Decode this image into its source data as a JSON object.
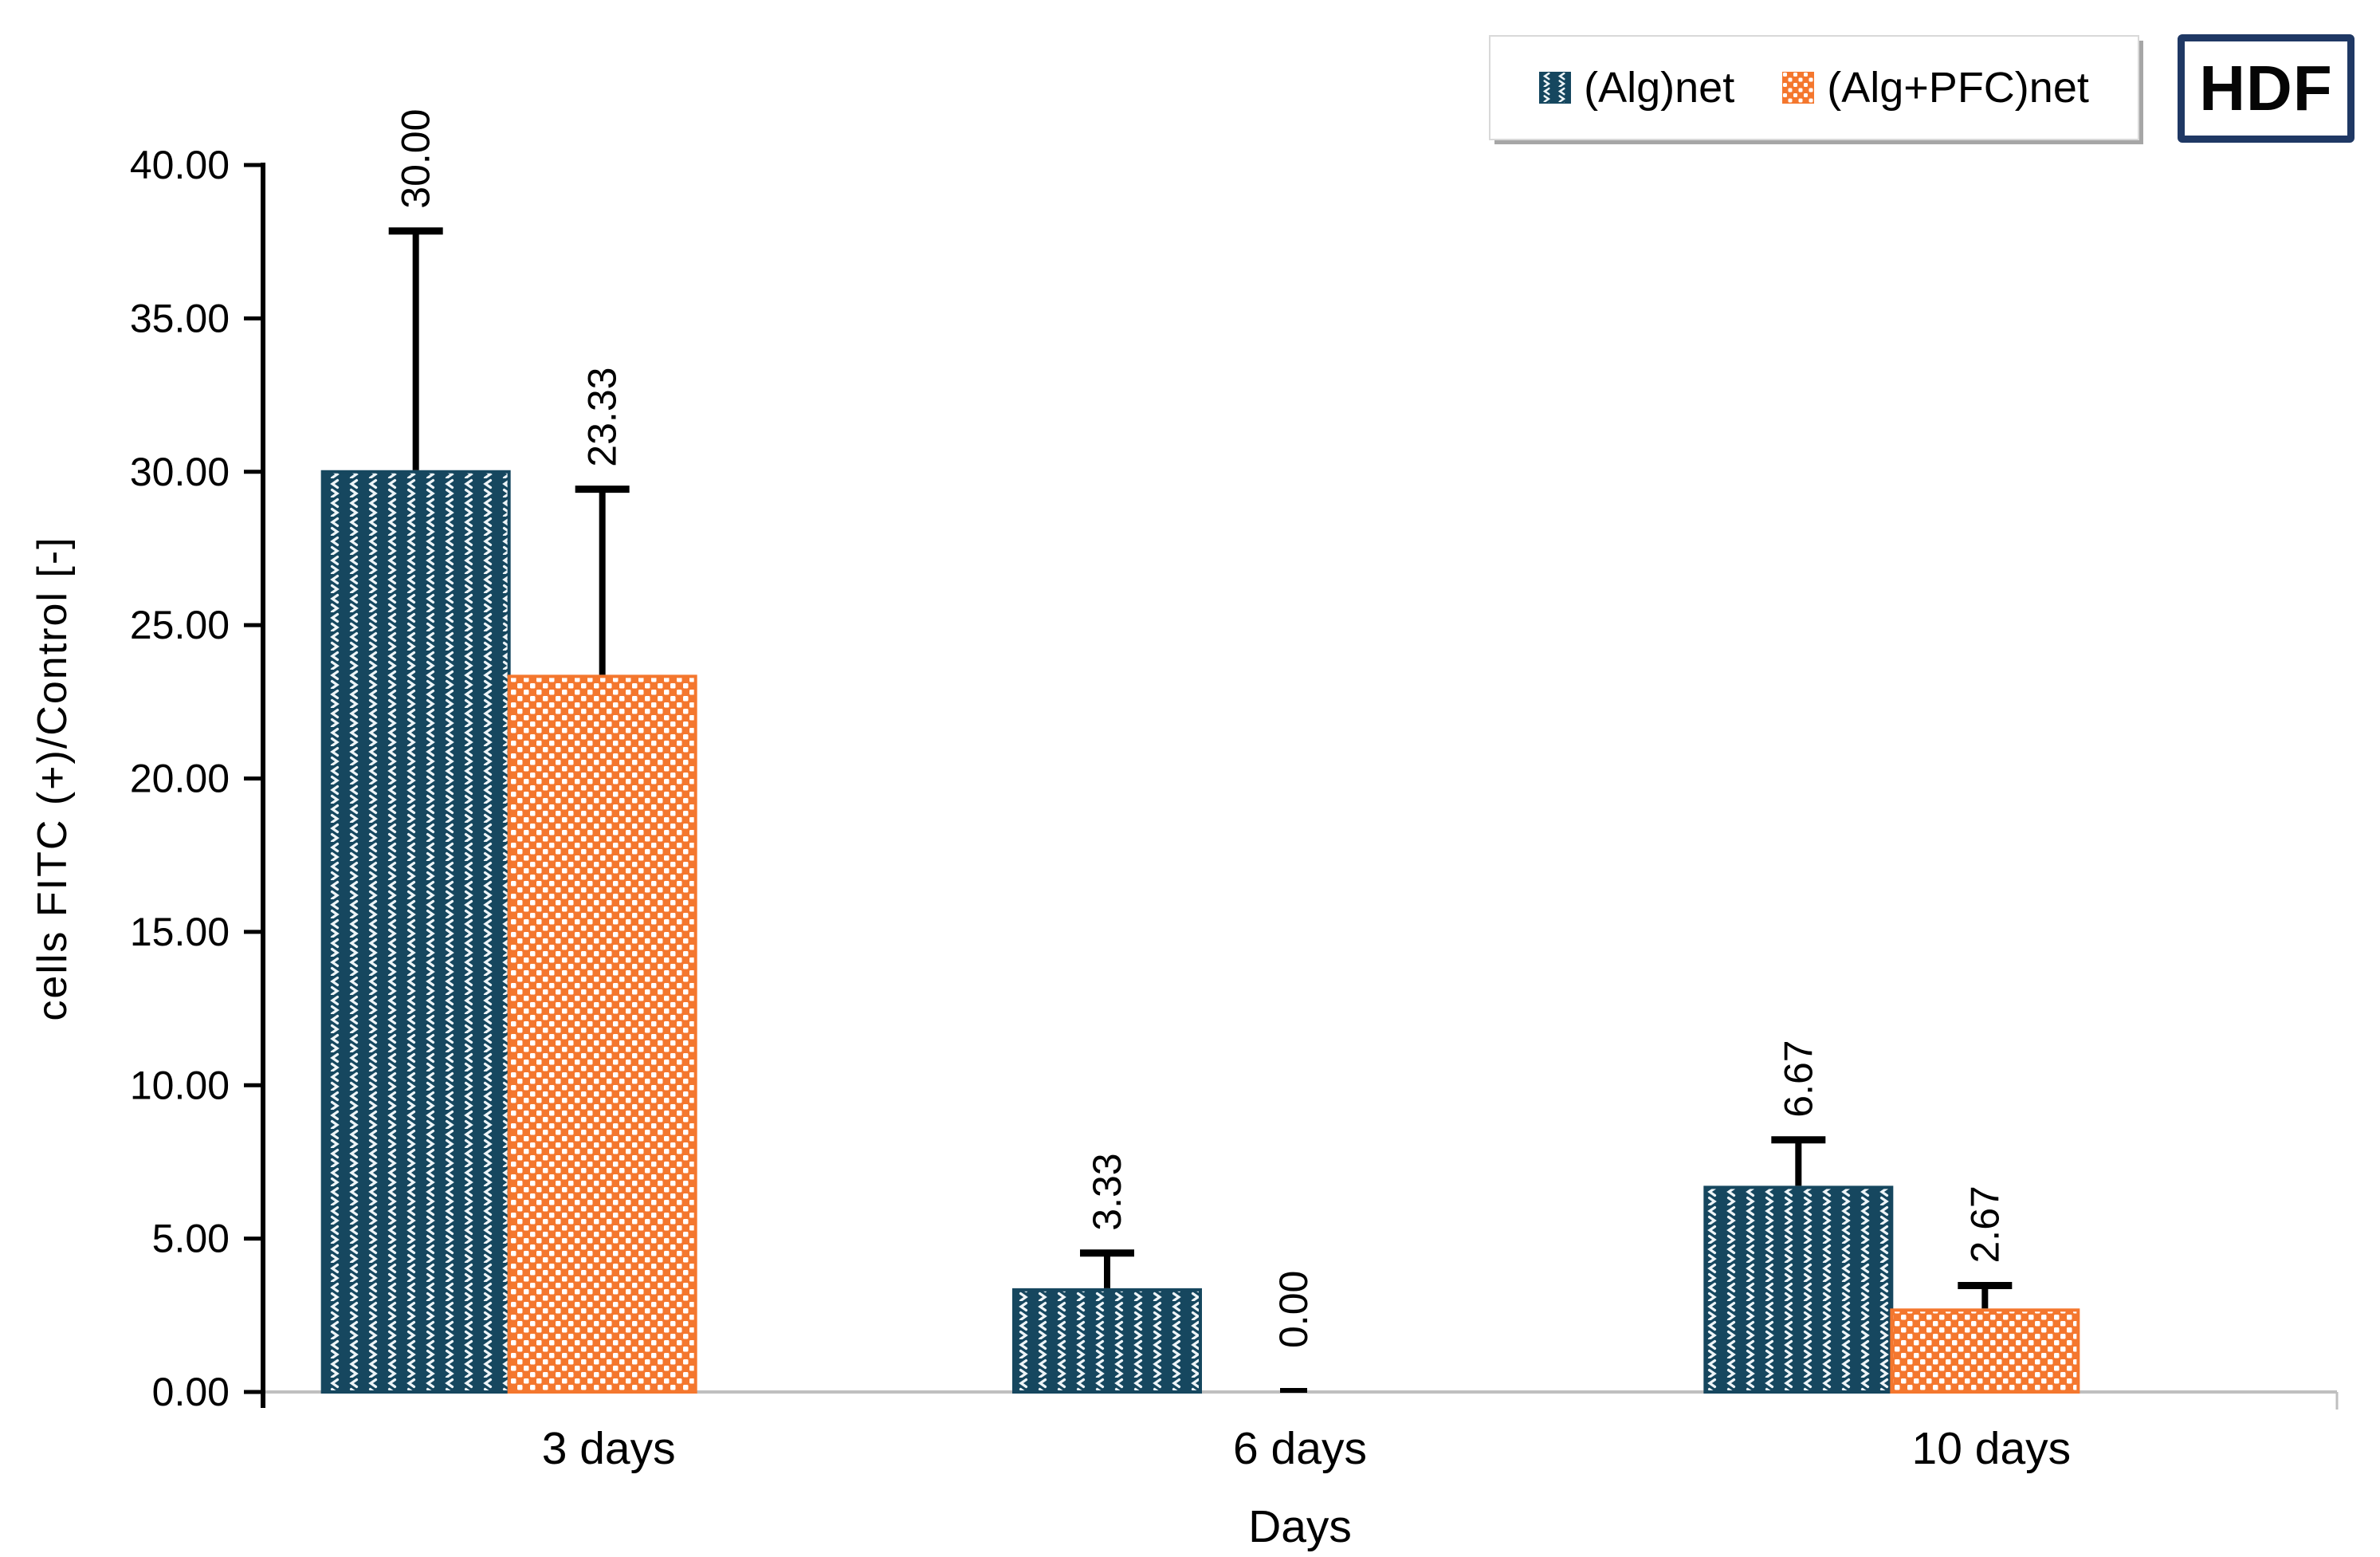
{
  "badge": {
    "label": "HDF",
    "border_color": "#1f3864"
  },
  "legend": {
    "items": [
      {
        "label": "(Alg)net",
        "swatch": "navy-chevron-pattern"
      },
      {
        "label": "(Alg+PFC)net",
        "swatch": "orange-checker-pattern"
      }
    ],
    "border_color": "#d9d9d9",
    "shadow_color": "#a6a6a6"
  },
  "chart_data": {
    "type": "bar",
    "title": "",
    "xlabel": "Days",
    "ylabel": "cells FITC (+)/Control [-]",
    "categories": [
      "3 days",
      "6 days",
      "10 days"
    ],
    "series": [
      {
        "name": "(Alg)net",
        "color": "#16475f",
        "pattern": "chevron",
        "pattern_fg": "#eef5f8",
        "values": [
          30.0,
          3.33,
          6.67
        ],
        "errors": [
          7.85,
          1.2,
          1.55
        ],
        "labels": [
          "30.00",
          "3.33",
          "6.67"
        ]
      },
      {
        "name": "(Alg+PFC)net",
        "color": "#f4772e",
        "pattern": "checker",
        "pattern_fg": "#ffffff",
        "values": [
          23.33,
          0.0,
          2.67
        ],
        "errors": [
          6.1,
          0.0,
          0.8
        ],
        "labels": [
          "23.33",
          "0.00",
          "2.67"
        ]
      }
    ],
    "ylim": [
      0,
      40
    ],
    "ytick_step": 5,
    "ytick_labels": [
      "0.00",
      "5.00",
      "10.00",
      "15.00",
      "20.00",
      "25.00",
      "30.00",
      "35.00",
      "40.00"
    ],
    "grid": false,
    "legend_position": "top-right",
    "bar_label_rotation": -90,
    "error_bars": "plus-direction-with-caps"
  },
  "colors": {
    "axis": "#000000",
    "baseline": "#bfbfbf",
    "text": "#000000",
    "background": "#ffffff"
  }
}
